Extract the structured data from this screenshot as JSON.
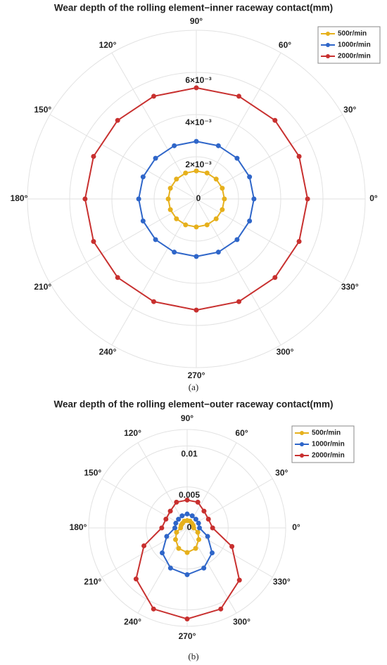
{
  "chart_data": [
    {
      "type": "polar",
      "title": "Wear depth of the rolling element−inner raceway contact(mm)",
      "caption": "(a)",
      "theta": [
        0,
        22.5,
        45,
        67.5,
        90,
        112.5,
        135,
        157.5,
        180,
        202.5,
        225,
        247.5,
        270,
        292.5,
        315,
        337.5
      ],
      "series": [
        {
          "name": "500r/min",
          "color": "#e6b01c",
          "values": [
            0.00133,
            0.00133,
            0.00133,
            0.00133,
            0.00133,
            0.00133,
            0.00133,
            0.00133,
            0.00133,
            0.00133,
            0.00133,
            0.00133,
            0.00133,
            0.00133,
            0.00133,
            0.00133
          ]
        },
        {
          "name": "1000r/min",
          "color": "#2f66c9",
          "values": [
            0.00273,
            0.00273,
            0.00273,
            0.00273,
            0.00273,
            0.00273,
            0.00273,
            0.00273,
            0.00273,
            0.00273,
            0.00273,
            0.00273,
            0.00273,
            0.00273,
            0.00273,
            0.00273
          ]
        },
        {
          "name": "2000r/min",
          "color": "#c8302f",
          "values": [
            0.00527,
            0.00527,
            0.00527,
            0.00527,
            0.00527,
            0.00527,
            0.00527,
            0.00527,
            0.00527,
            0.00527,
            0.00527,
            0.00527,
            0.00527,
            0.00527,
            0.00527,
            0.00527
          ]
        }
      ],
      "rlim": [
        0,
        0.008
      ],
      "rticks": [
        0,
        {
          "value": 0.002,
          "label": "2×10⁻³"
        },
        {
          "value": 0.004,
          "label": "4×10⁻³"
        },
        {
          "value": 0.006,
          "label": "6×10⁻³"
        }
      ],
      "thetaticks": [
        {
          "value": 0,
          "label": "0°"
        },
        {
          "value": 30,
          "label": "30°"
        },
        {
          "value": 60,
          "label": "60°"
        },
        {
          "value": 90,
          "label": "90°"
        },
        {
          "value": 120,
          "label": "120°"
        },
        {
          "value": 150,
          "label": "150°"
        },
        {
          "value": 180,
          "label": "180°"
        },
        {
          "value": 210,
          "label": "210°"
        },
        {
          "value": 240,
          "label": "240°"
        },
        {
          "value": 270,
          "label": "270°"
        },
        {
          "value": 300,
          "label": "300°"
        },
        {
          "value": 330,
          "label": "330°"
        }
      ],
      "grid": true,
      "legend": "top-right"
    },
    {
      "type": "polar",
      "title": "Wear depth of the rolling element−outer raceway contact(mm)",
      "caption": "(b)",
      "theta": [
        0,
        22.5,
        45,
        67.5,
        90,
        112.5,
        135,
        157.5,
        180,
        202.5,
        225,
        247.5,
        270,
        292.5,
        315,
        337.5
      ],
      "series": [
        {
          "name": "500r/min",
          "color": "#e6b01c",
          "values": [
            0.0008,
            0.0008,
            0.0008,
            0.0009,
            0.0009,
            0.0009,
            0.0008,
            0.0008,
            0.0008,
            0.0014,
            0.002,
            0.0027,
            0.003,
            0.0027,
            0.002,
            0.0014
          ]
        },
        {
          "name": "1000r/min",
          "color": "#2f66c9",
          "values": [
            0.0015,
            0.0015,
            0.0015,
            0.0016,
            0.0017,
            0.0016,
            0.0015,
            0.0015,
            0.0015,
            0.0027,
            0.0043,
            0.0053,
            0.0057,
            0.0053,
            0.0043,
            0.0027
          ]
        },
        {
          "name": "2000r/min",
          "color": "#c8302f",
          "values": [
            0.0031,
            0.0028,
            0.0029,
            0.0034,
            0.0034,
            0.0034,
            0.0029,
            0.0028,
            0.0031,
            0.0057,
            0.0088,
            0.0107,
            0.0111,
            0.0107,
            0.009,
            0.0059
          ]
        }
      ],
      "rlim": [
        0,
        0.012
      ],
      "rticks": [
        0,
        0.005,
        0.01
      ],
      "thetaticks": [
        {
          "value": 0,
          "label": "0°"
        },
        {
          "value": 30,
          "label": "30°"
        },
        {
          "value": 60,
          "label": "60°"
        },
        {
          "value": 90,
          "label": "90°"
        },
        {
          "value": 120,
          "label": "120°"
        },
        {
          "value": 150,
          "label": "150°"
        },
        {
          "value": 180,
          "label": "180°"
        },
        {
          "value": 210,
          "label": "210°"
        },
        {
          "value": 240,
          "label": "240°"
        },
        {
          "value": 270,
          "label": "270°"
        },
        {
          "value": 300,
          "label": "300°"
        },
        {
          "value": 330,
          "label": "330°"
        }
      ],
      "grid": true,
      "legend": "top-right"
    }
  ]
}
